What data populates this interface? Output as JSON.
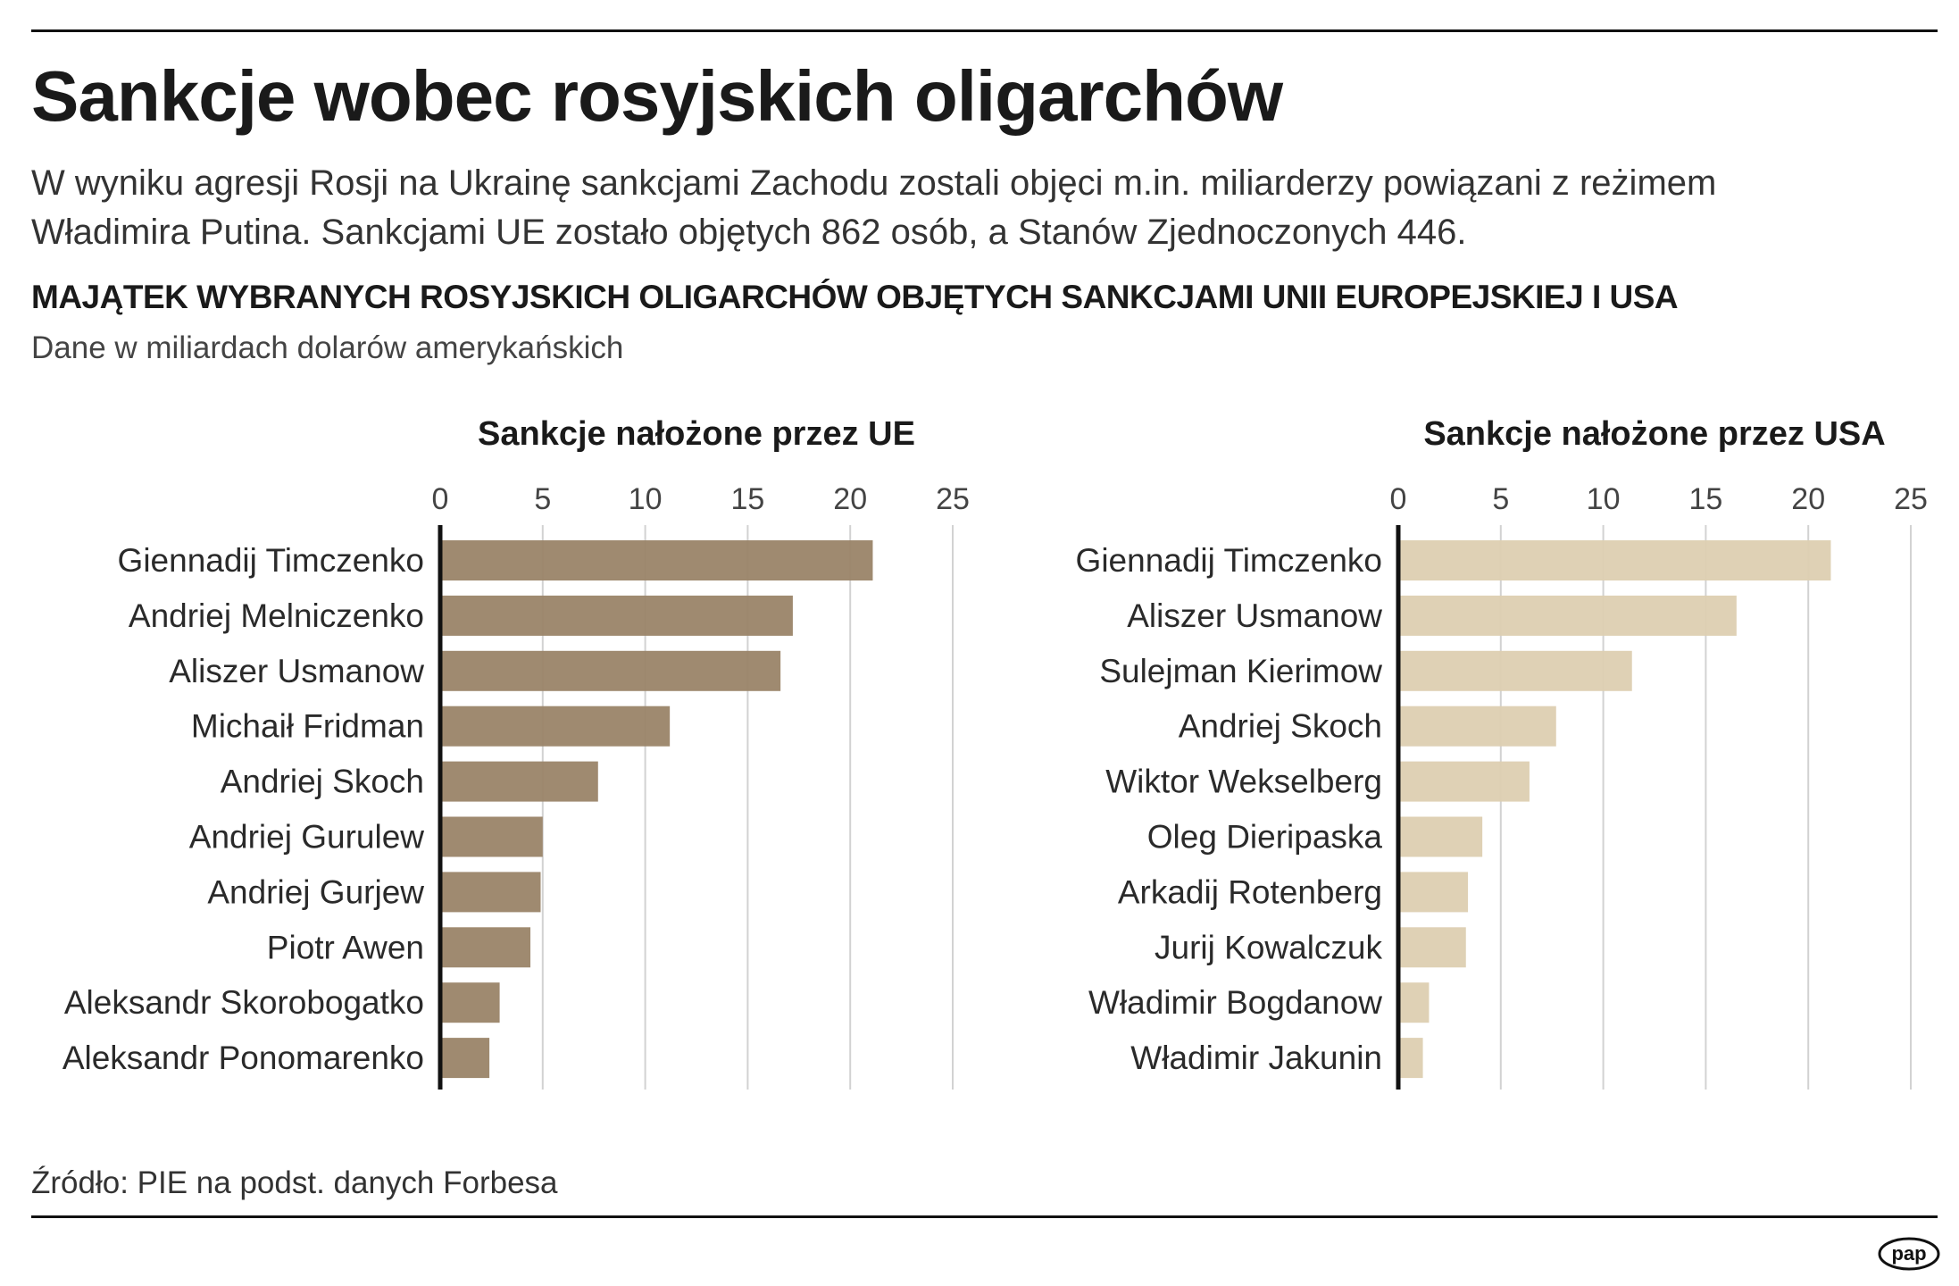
{
  "title": "Sankcje wobec rosyjskich oligarchów",
  "subtitle_lines": [
    "W wyniku agresji Rosji na Ukrainę sankcjami Zachodu zostali objęci m.in. miliarderzy powiązani z reżimem",
    "Władimira Putina. Sankcjami UE zostało objętych 862 osób, a Stanów Zjednoczonych 446."
  ],
  "chart_header": "MAJĄTEK WYBRANYCH ROSYJSKICH OLIGARCHÓW OBJĘTYCH SANKCJAMI UNII EUROPEJSKIEJ I USA",
  "unit_note": "Dane w miliardach dolarów amerykańskich",
  "source": "Źródło: PIE na podst. danych Forbesa",
  "logo_text": "pap",
  "chart_data": [
    {
      "type": "bar",
      "orientation": "horizontal",
      "title": "Sankcje nałożone przez UE",
      "color": "#9a8468",
      "xlim": [
        0,
        25
      ],
      "xticks": [
        0,
        5,
        10,
        15,
        20,
        25
      ],
      "grid": true,
      "categories": [
        "Giennadij Timczenko",
        "Andriej Melniczenko",
        "Aliszer Usmanow",
        "Michaił Fridman",
        "Andriej Skoch",
        "Andriej Gurulew",
        "Andriej Gurjew",
        "Piotr Awen",
        "Aleksandr Skorobogatko",
        "Aleksandr Ponomarenko"
      ],
      "values": [
        21.1,
        17.2,
        16.6,
        11.2,
        7.7,
        5.0,
        4.9,
        4.4,
        2.9,
        2.4
      ]
    },
    {
      "type": "bar",
      "orientation": "horizontal",
      "title": "Sankcje nałożone przez USA",
      "color": "#ddcfb1",
      "xlim": [
        0,
        25
      ],
      "xticks": [
        0,
        5,
        10,
        15,
        20,
        25
      ],
      "grid": true,
      "categories": [
        "Giennadij Timczenko",
        "Aliszer Usmanow",
        "Sulejman Kierimow",
        "Andriej Skoch",
        "Wiktor Wekselberg",
        "Oleg Dieripaska",
        "Arkadij Rotenberg",
        "Jurij Kowalczuk",
        "Władimir Bogdanow",
        "Władimir Jakunin"
      ],
      "values": [
        21.1,
        16.5,
        11.4,
        7.7,
        6.4,
        4.1,
        3.4,
        3.3,
        1.5,
        1.2
      ]
    }
  ]
}
